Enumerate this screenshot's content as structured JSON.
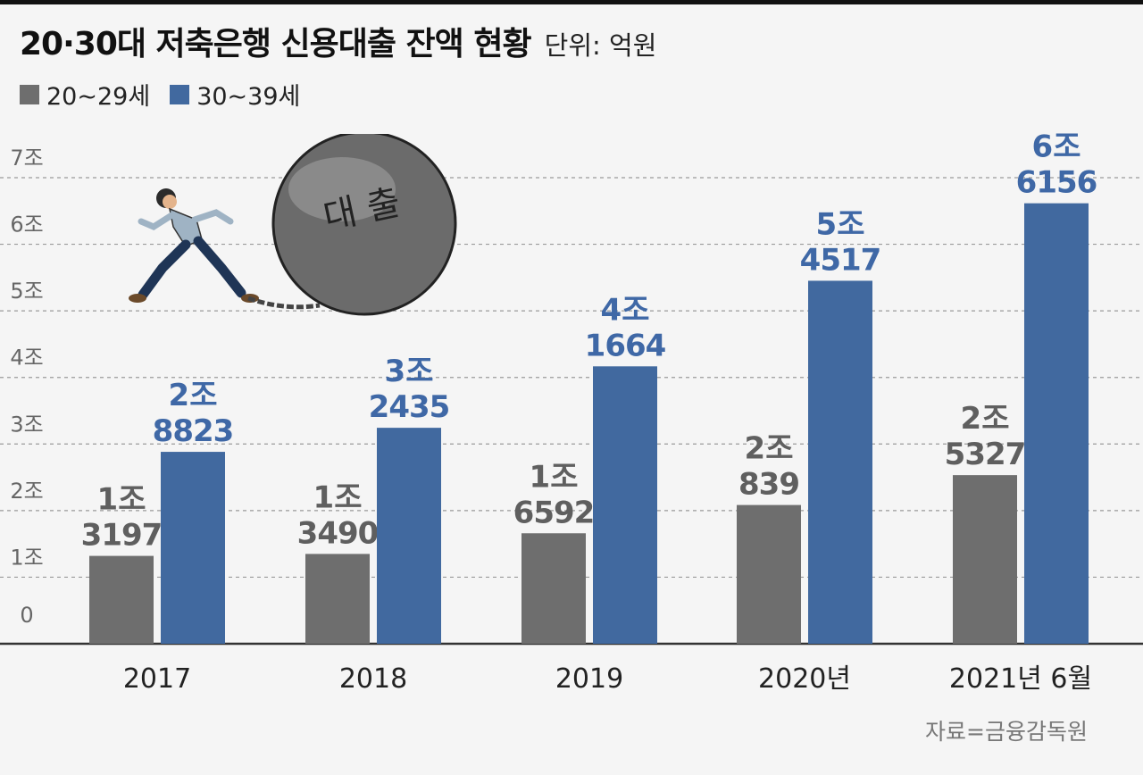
{
  "title": "20·30대 저축은행 신용대출 잔액 현황",
  "unit_label": "단위: 억원",
  "source": "자료=금융감독원",
  "illustration": {
    "ball_text": "대 출"
  },
  "colors": {
    "series_20s": "#6e6e6e",
    "series_30s": "#41699f",
    "grid": "#9a9a9a",
    "axis": "#333333"
  },
  "chart_data": {
    "type": "bar",
    "categories": [
      "2017",
      "2018",
      "2019",
      "2020년",
      "2021년 6월"
    ],
    "series": [
      {
        "name": "20~29세",
        "values": [
          13197,
          13490,
          16592,
          20839,
          25327
        ],
        "labels": [
          [
            "1조",
            "3197"
          ],
          [
            "1조",
            "3490"
          ],
          [
            "1조",
            "6592"
          ],
          [
            "2조",
            "839"
          ],
          [
            "2조",
            "5327"
          ]
        ]
      },
      {
        "name": "30~39세",
        "values": [
          28823,
          32435,
          41664,
          54517,
          66156
        ],
        "labels": [
          [
            "2조",
            "8823"
          ],
          [
            "3조",
            "2435"
          ],
          [
            "4조",
            "1664"
          ],
          [
            "5조",
            "4517"
          ],
          [
            "6조",
            "6156"
          ]
        ]
      }
    ],
    "y_ticks": [
      {
        "value": 0,
        "label": "0"
      },
      {
        "value": 10000,
        "label": "1조"
      },
      {
        "value": 20000,
        "label": "2조"
      },
      {
        "value": 30000,
        "label": "3조"
      },
      {
        "value": 40000,
        "label": "4조"
      },
      {
        "value": 50000,
        "label": "5조"
      },
      {
        "value": 60000,
        "label": "6조"
      },
      {
        "value": 70000,
        "label": "7조"
      }
    ],
    "ylim": [
      0,
      70000
    ],
    "grid": true,
    "legend_position": "top-left"
  }
}
